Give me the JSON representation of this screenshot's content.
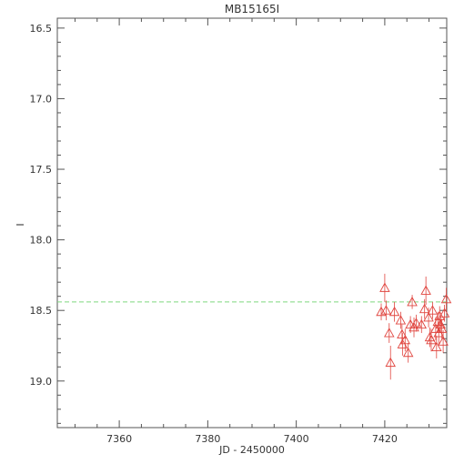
{
  "chart_data": {
    "type": "scatter",
    "title": "MB15165I",
    "xlabel": "JD - 2450000",
    "ylabel": "I",
    "xlim": [
      7346,
      7434
    ],
    "ylim": [
      19.33,
      16.43
    ],
    "y_inverted": true,
    "x_ticks": [
      "7360",
      "7380",
      "7400",
      "7420"
    ],
    "x_tick_values": [
      7360,
      7380,
      7400,
      7420
    ],
    "y_ticks": [
      "16.5",
      "17.0",
      "17.5",
      "18.0",
      "18.5",
      "19.0"
    ],
    "y_tick_values": [
      16.5,
      17.0,
      17.5,
      18.0,
      18.5,
      19.0
    ],
    "grid": false,
    "reference_line": {
      "y": 18.44,
      "color": "#7fd67f",
      "style": "dashed"
    },
    "series": [
      {
        "marker": "triangle-open",
        "color": "#e0453f",
        "points": [
          {
            "x": 7419.2,
            "y": 18.51,
            "err": 0.06
          },
          {
            "x": 7420.0,
            "y": 18.34,
            "err": 0.1
          },
          {
            "x": 7420.3,
            "y": 18.5,
            "err": 0.07
          },
          {
            "x": 7421.0,
            "y": 18.66,
            "err": 0.07
          },
          {
            "x": 7421.3,
            "y": 18.87,
            "err": 0.12
          },
          {
            "x": 7422.2,
            "y": 18.51,
            "err": 0.07
          },
          {
            "x": 7423.6,
            "y": 18.57,
            "err": 0.06
          },
          {
            "x": 7423.9,
            "y": 18.67,
            "err": 0.07
          },
          {
            "x": 7424.0,
            "y": 18.74,
            "err": 0.08
          },
          {
            "x": 7424.6,
            "y": 18.71,
            "err": 0.08
          },
          {
            "x": 7425.3,
            "y": 18.8,
            "err": 0.07
          },
          {
            "x": 7425.8,
            "y": 18.6,
            "err": 0.06
          },
          {
            "x": 7426.2,
            "y": 18.44,
            "err": 0.05
          },
          {
            "x": 7426.6,
            "y": 18.62,
            "err": 0.07
          },
          {
            "x": 7427.1,
            "y": 18.59,
            "err": 0.06
          },
          {
            "x": 7428.3,
            "y": 18.6,
            "err": 0.06
          },
          {
            "x": 7429.0,
            "y": 18.49,
            "err": 0.07
          },
          {
            "x": 7429.3,
            "y": 18.36,
            "err": 0.1
          },
          {
            "x": 7429.9,
            "y": 18.55,
            "err": 0.07
          },
          {
            "x": 7430.2,
            "y": 18.69,
            "err": 0.07
          },
          {
            "x": 7430.5,
            "y": 18.71,
            "err": 0.08
          },
          {
            "x": 7430.8,
            "y": 18.5,
            "err": 0.06
          },
          {
            "x": 7431.5,
            "y": 18.63,
            "err": 0.08
          },
          {
            "x": 7431.7,
            "y": 18.76,
            "err": 0.08
          },
          {
            "x": 7432.0,
            "y": 18.58,
            "err": 0.07
          },
          {
            "x": 7432.2,
            "y": 18.66,
            "err": 0.08
          },
          {
            "x": 7432.4,
            "y": 18.54,
            "err": 0.07
          },
          {
            "x": 7432.6,
            "y": 18.6,
            "err": 0.06
          },
          {
            "x": 7432.9,
            "y": 18.63,
            "err": 0.07
          },
          {
            "x": 7433.2,
            "y": 18.72,
            "err": 0.08
          },
          {
            "x": 7433.5,
            "y": 18.52,
            "err": 0.06
          },
          {
            "x": 7433.9,
            "y": 18.42,
            "err": 0.08
          }
        ]
      }
    ]
  }
}
